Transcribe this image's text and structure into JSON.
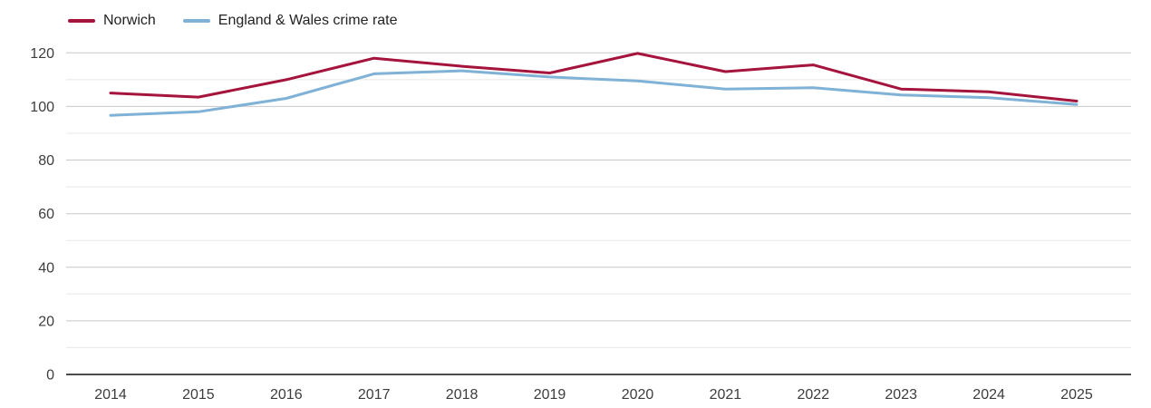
{
  "chart_data": {
    "type": "line",
    "x": [
      2014,
      2015,
      2016,
      2017,
      2018,
      2019,
      2020,
      2021,
      2022,
      2023,
      2024,
      2025
    ],
    "series": [
      {
        "name": "Norwich",
        "color": "#a5143c",
        "values": [
          105,
          103.5,
          110,
          118,
          115,
          112.5,
          119.8,
          113,
          115.5,
          106.5,
          105.5,
          102
        ]
      },
      {
        "name": "England & Wales crime rate",
        "color": "#7fb2d6",
        "values": [
          96.7,
          98,
          103,
          112.2,
          113.3,
          111,
          109.5,
          106.5,
          107,
          104.3,
          103.3,
          100.7
        ]
      }
    ],
    "title": "",
    "xlabel": "",
    "ylabel": "",
    "ylim": [
      0,
      120
    ],
    "y_major_ticks": [
      0,
      20,
      40,
      60,
      80,
      100,
      120
    ],
    "y_minor_ticks": [
      10,
      30,
      50,
      70,
      90,
      110
    ],
    "grid": true,
    "legend_position": "top-left"
  },
  "colors": {
    "background": "#ffffff",
    "axis_line": "#333333",
    "grid_major": "#c9c9c9",
    "grid_minor": "#e8e8e8",
    "tick_label": "#3d3d3d",
    "legend_text": "#222222"
  }
}
